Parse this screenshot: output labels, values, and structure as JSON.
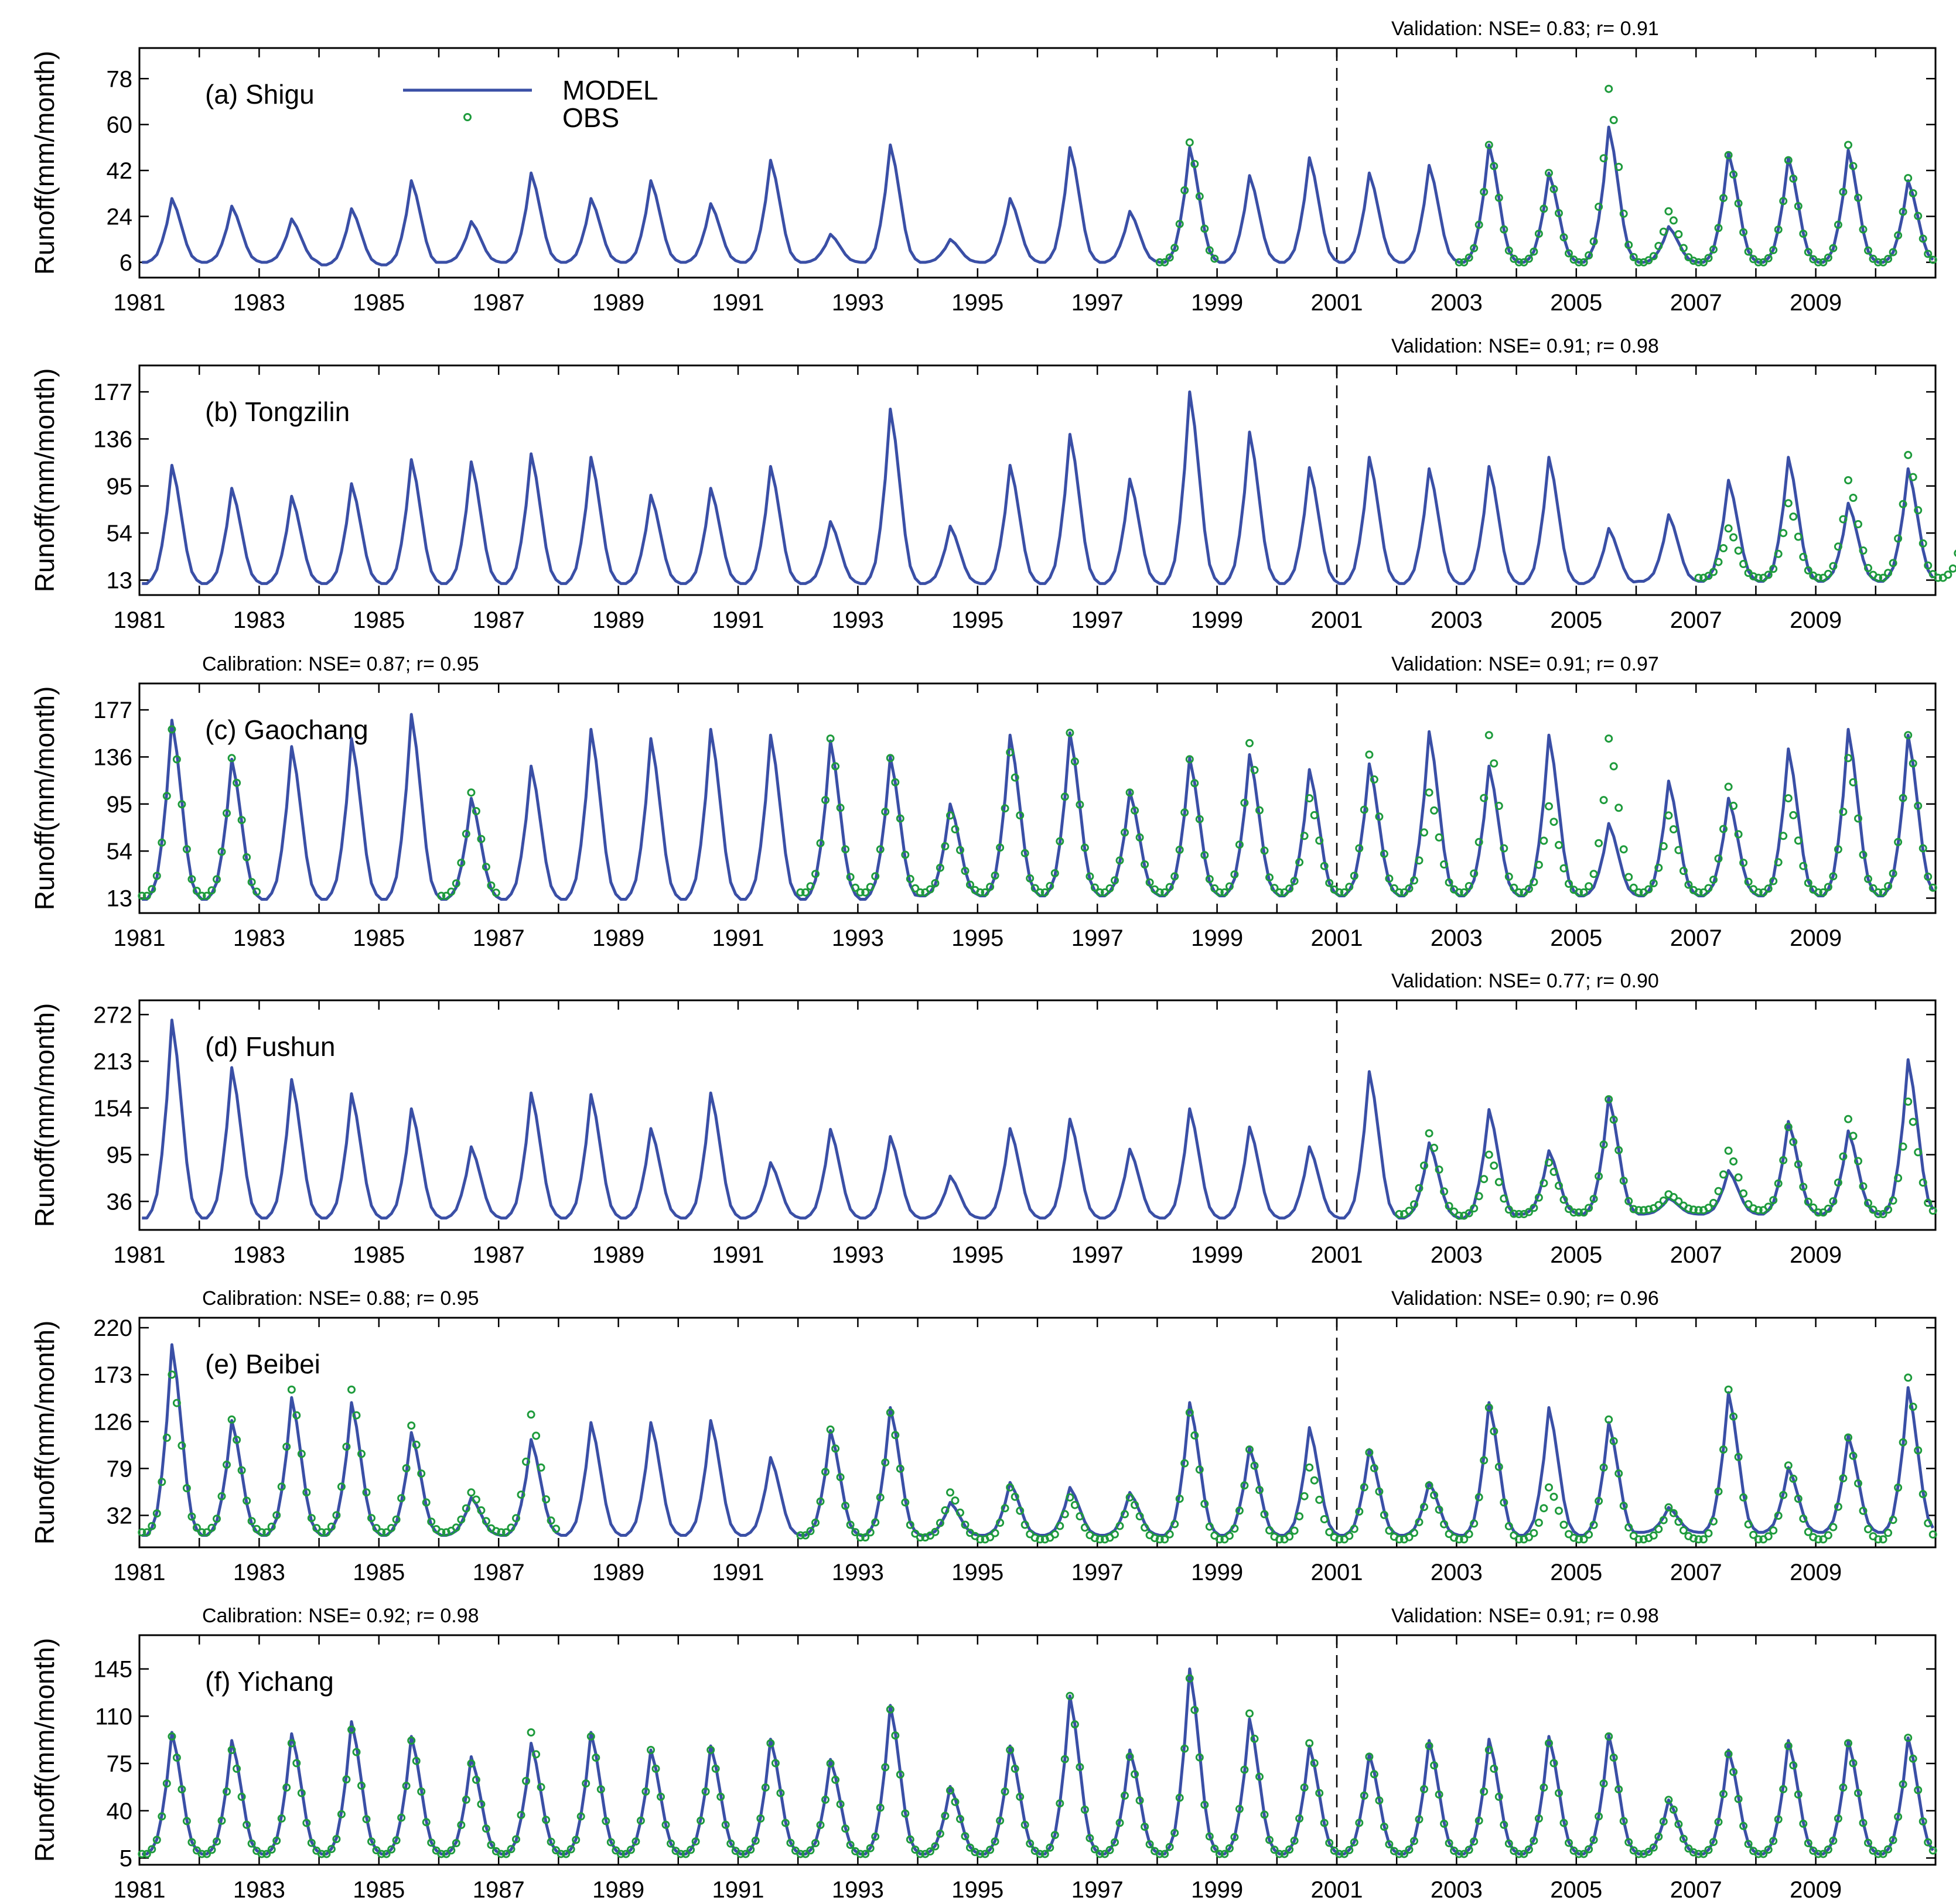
{
  "colors": {
    "model": "#3a4fa6",
    "obs": "#1e9b3c",
    "axis": "#000000"
  },
  "legend": {
    "model_label": "MODEL",
    "obs_label": "OBS"
  },
  "x_ticks": [
    "1981",
    "1983",
    "1985",
    "1987",
    "1989",
    "1991",
    "1993",
    "1995",
    "1997",
    "1999",
    "2001",
    "2003",
    "2005",
    "2007",
    "2009"
  ],
  "chart_data": [
    {
      "type": "line",
      "panel_label": "(a) Shigu",
      "ylabel": "Runoff(mm/month)",
      "xlim": [
        1981,
        2011
      ],
      "ylim": [
        0,
        90
      ],
      "yticks": [
        6,
        24,
        42,
        60,
        78
      ],
      "split_year": 2001,
      "calibration_text": "",
      "validation_text": "Validation: NSE=  0.83; r=  0.91",
      "legend": true,
      "series": [
        {
          "name": "MODEL",
          "kind": "line",
          "peaks": [
            31,
            28,
            23,
            27,
            38,
            22,
            41,
            31,
            38,
            29,
            46,
            17,
            52,
            15,
            31,
            51,
            26,
            51,
            40,
            47,
            41,
            44,
            52,
            41,
            59,
            20,
            49,
            47,
            50,
            38
          ],
          "troughs": [
            6,
            6,
            6,
            5,
            5,
            6,
            6,
            6,
            6,
            6,
            6,
            6,
            6,
            6,
            6,
            6,
            6,
            6,
            6,
            6,
            6,
            6,
            6,
            6,
            6,
            6,
            6,
            6,
            6,
            6
          ]
        },
        {
          "name": "OBS",
          "kind": "scatter",
          "start_year": 1998,
          "peaks": [
            53,
            null,
            null,
            null,
            null,
            52,
            41,
            74,
            26,
            48,
            46,
            52,
            39
          ],
          "troughs": [
            6,
            null,
            null,
            null,
            null,
            6,
            6,
            6,
            6,
            6,
            6,
            6,
            6
          ]
        }
      ]
    },
    {
      "type": "line",
      "panel_label": "(b) Tongzilin",
      "ylabel": "Runoff(mm/month)",
      "xlim": [
        1981,
        2011
      ],
      "ylim": [
        0,
        200
      ],
      "yticks": [
        13,
        54,
        95,
        136,
        177
      ],
      "split_year": 2001,
      "calibration_text": "",
      "validation_text": "Validation: NSE=  0.91; r=  0.98",
      "legend": false,
      "series": [
        {
          "name": "MODEL",
          "kind": "line",
          "peaks": [
            113,
            93,
            86,
            97,
            118,
            116,
            123,
            120,
            87,
            93,
            112,
            64,
            162,
            60,
            113,
            140,
            101,
            177,
            142,
            111,
            120,
            110,
            112,
            120,
            58,
            70,
            100,
            120,
            80,
            110
          ],
          "troughs": [
            10,
            10,
            10,
            10,
            10,
            10,
            10,
            10,
            10,
            10,
            10,
            10,
            10,
            10,
            10,
            10,
            10,
            10,
            10,
            10,
            10,
            10,
            10,
            10,
            10,
            12,
            12,
            12,
            12,
            12
          ]
        },
        {
          "name": "OBS",
          "kind": "scatter",
          "start_year": 2005,
          "peaks": [
            null,
            null,
            58,
            80,
            100,
            122,
            82
          ],
          "troughs": [
            null,
            20,
            15,
            15,
            15,
            15,
            15
          ]
        }
      ]
    },
    {
      "type": "line",
      "panel_label": "(c) Gaochang",
      "ylabel": "Runoff(mm/month)",
      "xlim": [
        1981,
        2011
      ],
      "ylim": [
        0,
        200
      ],
      "yticks": [
        13,
        54,
        95,
        136,
        177
      ],
      "split_year": 2001,
      "calibration_text": "Calibration: NSE=  0.87; r=  0.95",
      "validation_text": "Validation: NSE=  0.91; r=  0.97",
      "legend": false,
      "series": [
        {
          "name": "MODEL",
          "kind": "line",
          "peaks": [
            168,
            134,
            145,
            152,
            173,
            100,
            128,
            160,
            152,
            160,
            155,
            150,
            136,
            95,
            155,
            157,
            106,
            135,
            138,
            125,
            130,
            158,
            128,
            155,
            78,
            115,
            100,
            143,
            160,
            155
          ],
          "troughs": [
            12,
            12,
            12,
            12,
            12,
            12,
            12,
            12,
            12,
            12,
            12,
            12,
            12,
            15,
            15,
            15,
            15,
            15,
            15,
            15,
            15,
            15,
            15,
            15,
            15,
            15,
            15,
            15,
            15,
            15
          ]
        },
        {
          "name": "OBS",
          "kind": "scatter",
          "start_year": 1981,
          "peaks": [
            160,
            135,
            null,
            null,
            null,
            105,
            null,
            null,
            null,
            null,
            null,
            152,
            135,
            85,
            140,
            157,
            105,
            134,
            148,
            100,
            138,
            105,
            155,
            93,
            152,
            85,
            110,
            100,
            135,
            155
          ],
          "troughs": [
            15,
            15,
            null,
            null,
            null,
            15,
            null,
            null,
            null,
            null,
            null,
            18,
            18,
            18,
            18,
            18,
            18,
            18,
            18,
            18,
            18,
            18,
            18,
            18,
            18,
            18,
            18,
            18,
            18,
            18
          ]
        }
      ]
    },
    {
      "type": "line",
      "panel_label": "(d) Fushun",
      "ylabel": "Runoff(mm/month)",
      "xlim": [
        1981,
        2011
      ],
      "ylim": [
        0,
        290
      ],
      "yticks": [
        36,
        95,
        154,
        213,
        272
      ],
      "split_year": 2001,
      "calibration_text": "",
      "validation_text": "Validation: NSE=  0.77; r=  0.90",
      "legend": false,
      "series": [
        {
          "name": "MODEL",
          "kind": "line",
          "peaks": [
            265,
            205,
            190,
            172,
            153,
            105,
            173,
            171,
            128,
            173,
            85,
            127,
            118,
            68,
            128,
            140,
            102,
            153,
            130,
            105,
            200,
            110,
            152,
            100,
            168,
            40,
            75,
            137,
            125,
            215
          ],
          "troughs": [
            15,
            15,
            15,
            15,
            15,
            15,
            15,
            15,
            15,
            15,
            15,
            15,
            15,
            15,
            15,
            15,
            15,
            15,
            15,
            15,
            15,
            15,
            15,
            20,
            20,
            20,
            20,
            20,
            20,
            20
          ]
        },
        {
          "name": "OBS",
          "kind": "scatter",
          "start_year": 2001,
          "peaks": [
            null,
            122,
            95,
            85,
            165,
            45,
            100,
            130,
            140,
            162
          ],
          "troughs": [
            null,
            20,
            18,
            20,
            22,
            25,
            25,
            25,
            22,
            20
          ]
        }
      ]
    },
    {
      "type": "line",
      "panel_label": "(e) Beibei",
      "ylabel": "Runoff(mm/month)",
      "xlim": [
        1981,
        2011
      ],
      "ylim": [
        0,
        230
      ],
      "yticks": [
        32,
        79,
        126,
        173,
        220
      ],
      "split_year": 2001,
      "calibration_text": "Calibration: NSE=  0.88; r=  0.95",
      "validation_text": "Validation: NSE=  0.90; r=  0.96",
      "legend": false,
      "series": [
        {
          "name": "MODEL",
          "kind": "line",
          "peaks": [
            203,
            127,
            150,
            145,
            115,
            50,
            108,
            125,
            125,
            127,
            90,
            117,
            140,
            45,
            65,
            60,
            55,
            145,
            100,
            120,
            98,
            65,
            145,
            140,
            125,
            40,
            155,
            80,
            112,
            160
          ],
          "troughs": [
            12,
            12,
            12,
            12,
            12,
            12,
            12,
            12,
            12,
            12,
            12,
            12,
            12,
            12,
            12,
            12,
            12,
            12,
            12,
            12,
            12,
            12,
            12,
            12,
            12,
            15,
            15,
            15,
            15,
            15
          ]
        },
        {
          "name": "OBS",
          "kind": "scatter",
          "start_year": 1981,
          "peaks": [
            173,
            128,
            158,
            158,
            122,
            55,
            133,
            null,
            null,
            null,
            null,
            118,
            135,
            55,
            60,
            50,
            50,
            135,
            98,
            80,
            95,
            62,
            140,
            60,
            128,
            40,
            158,
            82,
            110,
            170
          ],
          "troughs": [
            15,
            15,
            15,
            15,
            15,
            15,
            15,
            null,
            null,
            null,
            null,
            12,
            10,
            10,
            8,
            8,
            8,
            8,
            8,
            8,
            8,
            8,
            8,
            8,
            8,
            8,
            8,
            8,
            8,
            8
          ]
        }
      ]
    },
    {
      "type": "line",
      "panel_label": "(f) Yichang",
      "ylabel": "Runoff(mm/month)",
      "xlim": [
        1981,
        2011
      ],
      "ylim": [
        0,
        170
      ],
      "yticks": [
        5,
        40,
        75,
        110,
        145
      ],
      "split_year": 2001,
      "calibration_text": "Calibration: NSE=  0.92; r=  0.98",
      "validation_text": "Validation: NSE=  0.91; r=  0.98",
      "legend": false,
      "series": [
        {
          "name": "MODEL",
          "kind": "line",
          "peaks": [
            98,
            92,
            97,
            106,
            95,
            80,
            90,
            98,
            85,
            88,
            93,
            78,
            118,
            58,
            88,
            125,
            85,
            145,
            108,
            88,
            82,
            92,
            93,
            95,
            96,
            48,
            85,
            92,
            92,
            94
          ],
          "troughs": [
            8,
            8,
            8,
            8,
            8,
            8,
            8,
            8,
            8,
            8,
            8,
            8,
            8,
            8,
            8,
            8,
            8,
            8,
            8,
            8,
            8,
            8,
            8,
            8,
            8,
            8,
            8,
            8,
            8,
            8
          ]
        },
        {
          "name": "OBS",
          "kind": "scatter",
          "start_year": 1981,
          "peaks": [
            95,
            85,
            90,
            100,
            92,
            75,
            98,
            95,
            85,
            85,
            90,
            75,
            115,
            55,
            85,
            125,
            80,
            138,
            112,
            90,
            80,
            88,
            85,
            90,
            95,
            48,
            82,
            88,
            90,
            94
          ],
          "troughs": [
            8,
            8,
            8,
            8,
            8,
            8,
            8,
            8,
            8,
            8,
            8,
            8,
            8,
            8,
            8,
            8,
            8,
            8,
            8,
            8,
            8,
            8,
            8,
            8,
            8,
            8,
            8,
            8,
            8,
            8
          ]
        }
      ]
    }
  ]
}
